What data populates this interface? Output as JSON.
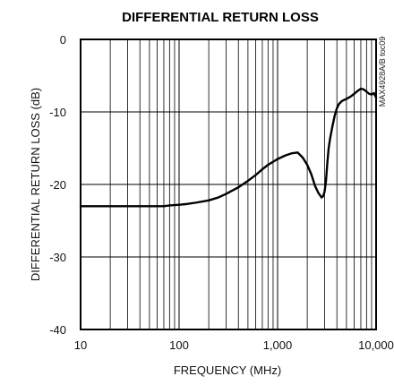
{
  "chart_data": {
    "type": "line",
    "title": "DIFFERENTIAL RETURN LOSS",
    "xlabel": "FREQUENCY (MHz)",
    "ylabel": "DIFFERENTIAL RETURN LOSS (dB)",
    "x_scale": "log",
    "xlim": [
      10,
      10000
    ],
    "ylim": [
      -40,
      0
    ],
    "x_ticks": [
      {
        "value": 10,
        "label": "10"
      },
      {
        "value": 100,
        "label": "100"
      },
      {
        "value": 1000,
        "label": "1,000"
      },
      {
        "value": 10000,
        "label": "10,000"
      }
    ],
    "y_ticks": [
      {
        "value": 0,
        "label": "0"
      },
      {
        "value": -10,
        "label": "-10"
      },
      {
        "value": -20,
        "label": "-20"
      },
      {
        "value": -30,
        "label": "-30"
      },
      {
        "value": -40,
        "label": "-40"
      }
    ],
    "grid": true,
    "annotation": "MAX4928A/B toc09",
    "series": [
      {
        "color": "#000000",
        "x": [
          10,
          15,
          20,
          30,
          40,
          50,
          60,
          70,
          80,
          100,
          120,
          150,
          200,
          250,
          300,
          400,
          500,
          600,
          700,
          800,
          1000,
          1200,
          1400,
          1600,
          1800,
          2000,
          2200,
          2400,
          2600,
          2800,
          2900,
          3000,
          3100,
          3200,
          3300,
          3400,
          3600,
          3800,
          4000,
          4200,
          4500,
          5000,
          5500,
          6000,
          6500,
          7000,
          7500,
          8000,
          8500,
          9000,
          9500,
          10000
        ],
        "y": [
          -23,
          -23,
          -23,
          -23,
          -23,
          -23,
          -23,
          -23,
          -22.9,
          -22.8,
          -22.7,
          -22.5,
          -22.2,
          -21.8,
          -21.3,
          -20.4,
          -19.5,
          -18.7,
          -17.9,
          -17.3,
          -16.5,
          -16,
          -15.7,
          -15.6,
          -16.3,
          -17.3,
          -18.6,
          -20.2,
          -21.2,
          -21.8,
          -21.6,
          -21,
          -19.5,
          -17,
          -15,
          -13.8,
          -12,
          -10.5,
          -9.5,
          -8.9,
          -8.5,
          -8.2,
          -7.9,
          -7.5,
          -7.1,
          -6.8,
          -6.9,
          -7.2,
          -7.5,
          -7.6,
          -7.4,
          -8
        ]
      }
    ]
  }
}
